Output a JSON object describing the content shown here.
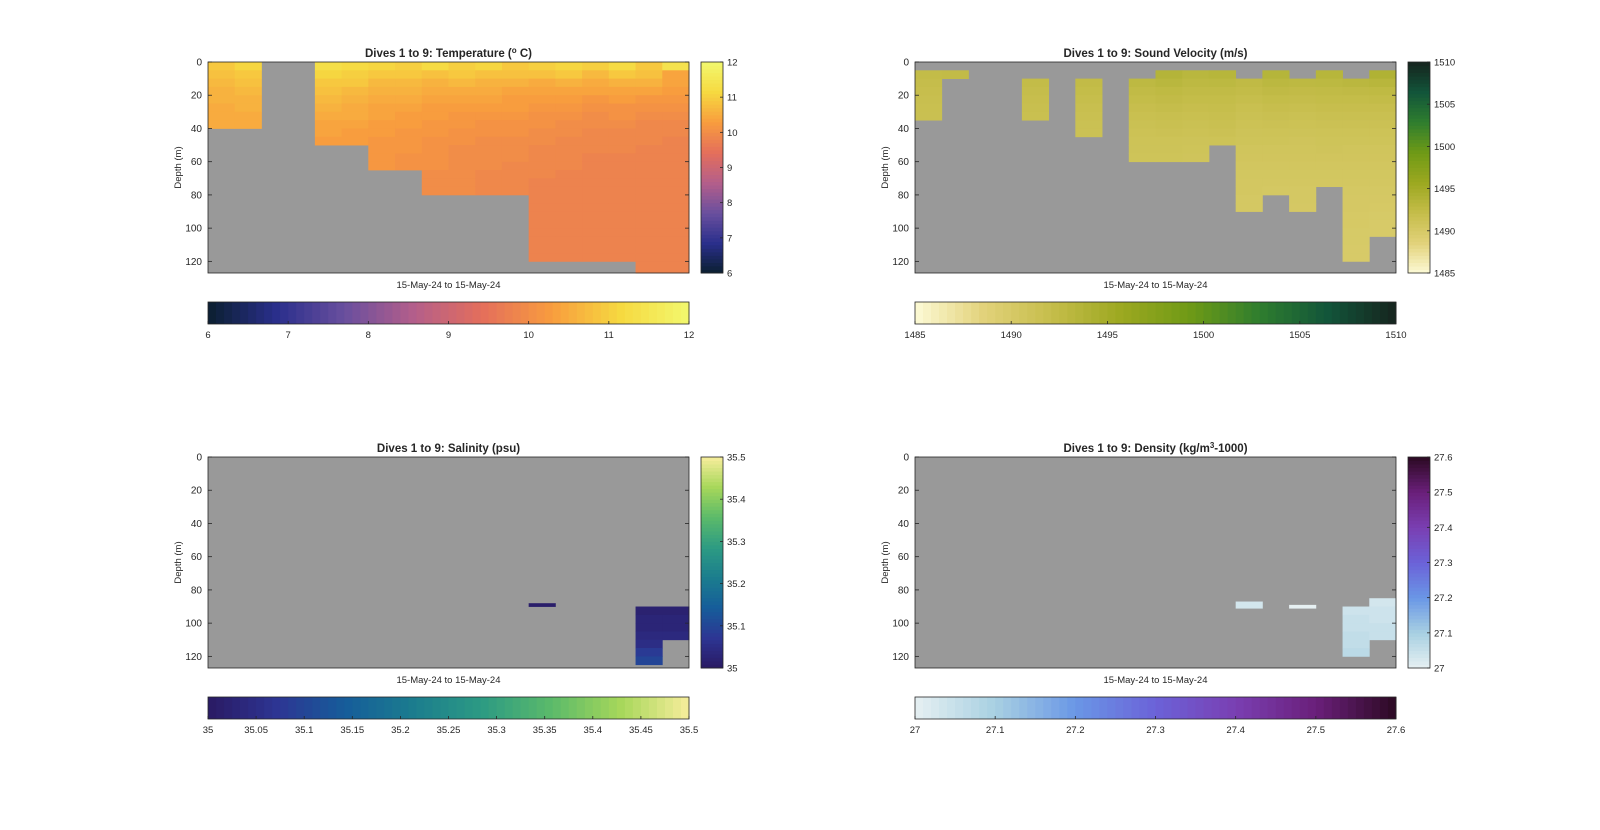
{
  "figure": {
    "background": "#ffffff",
    "nodata_color": "#999999"
  },
  "chart_data": [
    {
      "type": "heatmap",
      "id": "temperature",
      "title": "Dives 1 to 9: Temperature (",
      "title_sup": "o",
      "title_end": " C)",
      "ylabel": "Depth (m)",
      "xlabel": "15-May-24 to 15-May-24",
      "ylim": [
        0,
        127
      ],
      "y_reversed": true,
      "yticks": [
        "0",
        "20",
        "40",
        "60",
        "80",
        "100",
        "120"
      ],
      "n_columns": 18,
      "cell_height_m": 5,
      "clim": [
        6,
        12
      ],
      "colorbar_ticks": [
        "6",
        "7",
        "8",
        "9",
        "10",
        "11",
        "12"
      ],
      "horizontal_colorbar_ticks": [
        "6",
        "7",
        "8",
        "9",
        "10",
        "11",
        "12"
      ],
      "colormap": [
        "#0b1f30",
        "#2a2f8c",
        "#6a4f9e",
        "#b45e8a",
        "#e46f5b",
        "#f89c3e",
        "#f6d940",
        "#f2f86e"
      ],
      "columns": [
        {
          "values": [
            10.9,
            10.8,
            10.7,
            10.6,
            10.6,
            10.5,
            10.5,
            10.5
          ]
        },
        {
          "values": [
            11.1,
            10.9,
            10.8,
            10.7,
            10.6,
            10.6,
            10.5,
            10.5
          ]
        },
        {
          "values": []
        },
        {
          "values": []
        },
        {
          "values": [
            11.3,
            11.1,
            10.9,
            10.8,
            10.7,
            10.6,
            10.5,
            10.4,
            10.4,
            10.3
          ]
        },
        {
          "values": [
            11.2,
            11.0,
            10.9,
            10.7,
            10.6,
            10.5,
            10.5,
            10.4,
            10.3,
            10.3
          ]
        },
        {
          "values": [
            11.1,
            10.9,
            10.7,
            10.6,
            10.5,
            10.4,
            10.4,
            10.3,
            10.3,
            10.2,
            10.2,
            10.2,
            10.2
          ]
        },
        {
          "values": [
            11.0,
            10.9,
            10.7,
            10.6,
            10.5,
            10.4,
            10.3,
            10.3,
            10.2,
            10.2,
            10.2,
            10.1,
            10.1
          ]
        },
        {
          "values": [
            11.2,
            10.8,
            10.6,
            10.5,
            10.4,
            10.3,
            10.3,
            10.2,
            10.2,
            10.1,
            10.1,
            10.1,
            10.1,
            10.0,
            10.0,
            10.0
          ]
        },
        {
          "values": [
            11.0,
            10.9,
            10.7,
            10.5,
            10.4,
            10.3,
            10.2,
            10.2,
            10.1,
            10.1,
            10.0,
            10.0,
            10.0,
            10.0,
            10.0,
            10.0
          ]
        },
        {
          "values": [
            11.1,
            10.8,
            10.6,
            10.5,
            10.4,
            10.3,
            10.2,
            10.1,
            10.1,
            10.0,
            10.0,
            10.0,
            10.0,
            9.9,
            9.9,
            9.9
          ]
        },
        {
          "values": [
            10.9,
            10.8,
            10.6,
            10.4,
            10.3,
            10.3,
            10.2,
            10.1,
            10.1,
            10.0,
            10.0,
            10.0,
            9.9,
            9.9,
            9.9,
            9.9
          ]
        },
        {
          "values": [
            11.0,
            10.8,
            10.5,
            10.4,
            10.3,
            10.2,
            10.1,
            10.1,
            10.0,
            10.0,
            9.9,
            9.9,
            9.9,
            9.9,
            9.8,
            9.8,
            9.8,
            9.8,
            9.8,
            9.8,
            9.8,
            9.8,
            9.8,
            9.8
          ]
        },
        {
          "values": [
            11.1,
            10.9,
            10.6,
            10.4,
            10.3,
            10.2,
            10.1,
            10.0,
            10.0,
            9.9,
            9.9,
            9.9,
            9.9,
            9.8,
            9.8,
            9.8,
            9.8,
            9.8,
            9.8,
            9.8,
            9.8,
            9.8,
            9.8,
            9.8
          ]
        },
        {
          "values": [
            11.0,
            10.7,
            10.5,
            10.4,
            10.2,
            10.1,
            10.0,
            10.0,
            9.9,
            9.9,
            9.9,
            9.8,
            9.8,
            9.8,
            9.8,
            9.8,
            9.8,
            9.8,
            9.8,
            9.8,
            9.8,
            9.8,
            9.8,
            9.8
          ]
        },
        {
          "values": [
            11.2,
            10.9,
            10.6,
            10.4,
            10.3,
            10.1,
            10.1,
            10.0,
            9.9,
            9.9,
            9.9,
            9.8,
            9.8,
            9.8,
            9.8,
            9.8,
            9.8,
            9.8,
            9.8,
            9.8,
            9.8,
            9.8,
            9.8,
            9.8
          ]
        },
        {
          "values": [
            10.9,
            10.8,
            10.6,
            10.4,
            10.2,
            10.1,
            10.0,
            9.9,
            9.9,
            9.9,
            9.8,
            9.8,
            9.8,
            9.8,
            9.8,
            9.8,
            9.8,
            9.8,
            9.8,
            9.8,
            9.8,
            9.8,
            9.8,
            9.8,
            9.8,
            9.8
          ]
        },
        {
          "values": [
            11.4,
            10.4,
            10.4,
            10.3,
            10.2,
            10.1,
            10.0,
            9.9,
            9.9,
            9.8,
            9.8,
            9.8,
            9.8,
            9.8,
            9.8,
            9.8,
            9.8,
            9.8,
            9.8,
            9.8,
            9.8,
            9.8,
            9.8,
            9.8,
            9.8,
            9.8
          ]
        }
      ]
    },
    {
      "type": "heatmap",
      "id": "sound_velocity",
      "title": "Dives 1 to 9: Sound Velocity (m/s)",
      "title_sup": "",
      "title_end": "",
      "ylabel": "Depth (m)",
      "xlabel": "15-May-24 to 15-May-24",
      "ylim": [
        0,
        127
      ],
      "y_reversed": true,
      "yticks": [
        "0",
        "20",
        "40",
        "60",
        "80",
        "100",
        "120"
      ],
      "n_columns": 18,
      "cell_height_m": 5,
      "clim": [
        1485,
        1510
      ],
      "colorbar_ticks": [
        "1485",
        "1490",
        "1495",
        "1500",
        "1505",
        "1510"
      ],
      "horizontal_colorbar_ticks": [
        "1485",
        "1490",
        "1495",
        "1500",
        "1505",
        "1510"
      ],
      "colormap": [
        "#fdfad6",
        "#e2d27a",
        "#c5bd4a",
        "#9ca820",
        "#6f9a16",
        "#2f7e2e",
        "#12553a",
        "#16241e"
      ],
      "columns": [
        {
          "start": 5,
          "values": [
            1492.3,
            1492.1,
            1491.9,
            1491.8,
            1491.7,
            1491.6
          ]
        },
        {
          "start": 5,
          "values": [
            1492.4
          ]
        },
        {
          "values": []
        },
        {
          "values": []
        },
        {
          "start": 10,
          "values": [
            1492.3,
            1492.1,
            1491.9,
            1491.8,
            1491.7
          ]
        },
        {
          "values": []
        },
        {
          "start": 10,
          "values": [
            1492.4,
            1492.2,
            1492.0,
            1491.8,
            1491.6,
            1491.5,
            1491.4
          ]
        },
        {
          "values": []
        },
        {
          "start": 10,
          "values": [
            1492.8,
            1492.5,
            1492.2,
            1491.9,
            1491.7,
            1491.5,
            1491.3,
            1491.2,
            1491.1,
            1491.0
          ]
        },
        {
          "start": 5,
          "values": [
            1493.6,
            1493.2,
            1492.7,
            1492.4,
            1492.1,
            1491.8,
            1491.6,
            1491.4,
            1491.2,
            1491.1,
            1491.0
          ]
        },
        {
          "start": 5,
          "values": [
            1493.2,
            1492.8,
            1492.5,
            1492.2,
            1491.9,
            1491.7,
            1491.5,
            1491.3,
            1491.1,
            1491.0,
            1490.9
          ]
        },
        {
          "start": 5,
          "values": [
            1493.4,
            1492.9,
            1492.5,
            1492.2,
            1492.0,
            1491.8,
            1491.6,
            1491.4,
            1491.2
          ]
        },
        {
          "start": 10,
          "values": [
            1492.6,
            1492.3,
            1492.0,
            1491.7,
            1491.5,
            1491.3,
            1491.1,
            1491.0,
            1490.8,
            1490.7,
            1490.6,
            1490.5,
            1490.4,
            1490.4,
            1490.3,
            1490.3
          ]
        },
        {
          "start": 5,
          "values": [
            1493.5,
            1493.0,
            1492.6,
            1492.2,
            1491.9,
            1491.6,
            1491.4,
            1491.2,
            1491.0,
            1490.8,
            1490.7,
            1490.6,
            1490.5,
            1490.4,
            1490.3
          ]
        },
        {
          "start": 10,
          "values": [
            1492.8,
            1492.4,
            1492.1,
            1491.8,
            1491.5,
            1491.3,
            1491.1,
            1490.9,
            1490.8,
            1490.7,
            1490.6,
            1490.5,
            1490.4,
            1490.3,
            1490.3,
            1490.2
          ]
        },
        {
          "start": 5,
          "values": [
            1493.4,
            1492.9,
            1492.5,
            1492.2,
            1491.9,
            1491.6,
            1491.4,
            1491.2,
            1491.0,
            1490.9,
            1490.7,
            1490.6,
            1490.5,
            1490.4
          ]
        },
        {
          "start": 10,
          "values": [
            1493.1,
            1492.6,
            1492.2,
            1491.9,
            1491.6,
            1491.4,
            1491.2,
            1491.0,
            1490.8,
            1490.7,
            1490.6,
            1490.5,
            1490.4,
            1490.3,
            1490.2,
            1490.2,
            1490.1,
            1490.1,
            1490.0,
            1490.0,
            1489.9,
            1489.9
          ]
        },
        {
          "start": 5,
          "values": [
            1494.0,
            1493.3,
            1492.7,
            1492.3,
            1491.9,
            1491.6,
            1491.4,
            1491.2,
            1491.0,
            1490.8,
            1490.7,
            1490.6,
            1490.5,
            1490.4,
            1490.3,
            1490.2,
            1490.1,
            1490.0,
            1489.9,
            1489.9
          ]
        }
      ]
    },
    {
      "type": "heatmap",
      "id": "salinity",
      "title": "Dives 1 to 9: Salinity (psu)",
      "title_sup": "",
      "title_end": "",
      "ylabel": "Depth (m)",
      "xlabel": "15-May-24 to 15-May-24",
      "ylim": [
        0,
        127
      ],
      "y_reversed": true,
      "yticks": [
        "0",
        "20",
        "40",
        "60",
        "80",
        "100",
        "120"
      ],
      "n_columns": 18,
      "cell_height_m": 5,
      "clim": [
        35,
        35.5
      ],
      "colorbar_ticks": [
        "35",
        "35.1",
        "35.2",
        "35.3",
        "35.4",
        "35.5"
      ],
      "horizontal_colorbar_ticks": [
        "35",
        "35.05",
        "35.1",
        "35.15",
        "35.2",
        "35.25",
        "35.3",
        "35.35",
        "35.4",
        "35.45",
        "35.5"
      ],
      "colormap": [
        "#2a1a63",
        "#2d3593",
        "#165d9a",
        "#1b7d8e",
        "#2d9b83",
        "#5bba6a",
        "#a6d75a",
        "#f7ed9c"
      ],
      "columns": [
        {
          "values": []
        },
        {
          "values": []
        },
        {
          "values": []
        },
        {
          "values": []
        },
        {
          "values": []
        },
        {
          "values": []
        },
        {
          "values": []
        },
        {
          "values": []
        },
        {
          "values": []
        },
        {
          "values": []
        },
        {
          "values": []
        },
        {
          "values": []
        },
        {
          "start": 88,
          "cell": 2,
          "values": [
            35.01
          ]
        },
        {
          "values": []
        },
        {
          "values": []
        },
        {
          "values": []
        },
        {
          "start": 90,
          "values": [
            35.02,
            35.03,
            35.03,
            35.04,
            35.05,
            35.08,
            35.1
          ]
        },
        {
          "start": 90,
          "values": [
            35.02,
            35.03,
            35.03,
            35.04
          ]
        }
      ]
    },
    {
      "type": "heatmap",
      "id": "density",
      "title": "Dives 1 to 9: Density (kg/m",
      "title_sup": "3",
      "title_end": "-1000)",
      "ylabel": "Depth (m)",
      "xlabel": "15-May-24 to 15-May-24",
      "ylim": [
        0,
        127
      ],
      "y_reversed": true,
      "yticks": [
        "0",
        "20",
        "40",
        "60",
        "80",
        "100",
        "120"
      ],
      "n_columns": 18,
      "cell_height_m": 5,
      "clim": [
        27,
        27.6
      ],
      "colorbar_ticks": [
        "27",
        "27.1",
        "27.2",
        "27.3",
        "27.4",
        "27.5",
        "27.6"
      ],
      "horizontal_colorbar_ticks": [
        "27",
        "27.1",
        "27.2",
        "27.3",
        "27.4",
        "27.5",
        "27.6"
      ],
      "colormap": [
        "#e6f0f2",
        "#a8d0e2",
        "#6a97e6",
        "#6b62d8",
        "#7a3fb2",
        "#6a1f7a",
        "#2c0a23"
      ],
      "columns": [
        {
          "values": []
        },
        {
          "values": []
        },
        {
          "values": []
        },
        {
          "values": []
        },
        {
          "values": []
        },
        {
          "values": []
        },
        {
          "values": []
        },
        {
          "values": []
        },
        {
          "values": []
        },
        {
          "values": []
        },
        {
          "values": []
        },
        {
          "values": []
        },
        {
          "start": 87,
          "cell": 4,
          "values": [
            27.03
          ]
        },
        {
          "values": []
        },
        {
          "start": 89,
          "cell": 2,
          "values": [
            27.0
          ]
        },
        {
          "values": []
        },
        {
          "start": 90,
          "values": [
            27.04,
            27.05,
            27.05,
            27.06,
            27.06,
            27.07
          ]
        },
        {
          "start": 85,
          "values": [
            27.03,
            27.04,
            27.04,
            27.05,
            27.05
          ]
        }
      ]
    }
  ]
}
